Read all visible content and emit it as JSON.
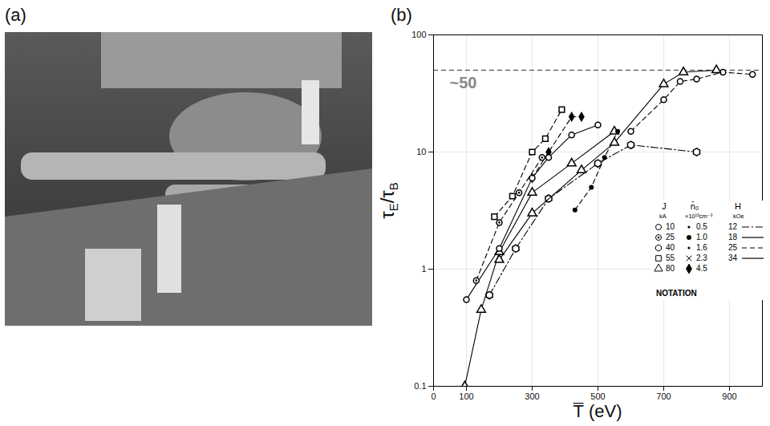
{
  "photo": {
    "label": "(a)"
  },
  "chart_data": {
    "panel_label": "(b)",
    "type": "line",
    "x_label": "T̅ (eV)",
    "y_label": "τE/τB",
    "xlim": [
      0,
      1000
    ],
    "ylim": [
      0.1,
      100
    ],
    "xticks": [
      0,
      100,
      300,
      500,
      700,
      900
    ],
    "yticks": [
      0.1,
      1,
      10,
      100
    ],
    "log": "y",
    "grid": true,
    "legend": "bottom-right",
    "annotations": [
      {
        "text": "~50",
        "y": 50,
        "line_style": "dashed"
      }
    ],
    "series": [
      {
        "marker": "triangle",
        "line_style": "solid",
        "x": [
          95,
          145,
          200,
          300,
          420,
          550
        ],
        "values": [
          0.1,
          0.45,
          1.4,
          4.5,
          8,
          15
        ]
      },
      {
        "marker": "square",
        "line_style": "dashed",
        "x": [
          185,
          240,
          300,
          340,
          390
        ],
        "values": [
          2.8,
          4.2,
          10,
          13,
          23
        ]
      },
      {
        "marker": "diamond-filled",
        "line_style": "dashed",
        "x": [
          300,
          350,
          420,
          450
        ],
        "values": [
          6,
          10,
          20,
          20
        ]
      },
      {
        "marker": "circle",
        "line_style": "solid",
        "x": [
          100,
          200,
          300,
          350,
          420,
          500
        ],
        "values": [
          0.55,
          1.5,
          6,
          9,
          14,
          17
        ]
      },
      {
        "marker": "circle-dot",
        "line_style": "dashed",
        "x": [
          130,
          200,
          260,
          330
        ],
        "values": [
          0.8,
          2.5,
          4.5,
          9
        ]
      },
      {
        "marker": "hexagon",
        "line_style": "dashdot",
        "x": [
          170,
          250,
          350,
          500,
          600,
          800
        ],
        "values": [
          0.6,
          1.5,
          4,
          8,
          11.5,
          10
        ]
      },
      {
        "marker": "circle",
        "line_style": "dashed",
        "x": [
          600,
          700,
          750,
          800,
          880,
          970
        ],
        "values": [
          15,
          28,
          40,
          42,
          48,
          46
        ]
      },
      {
        "marker": "filled-circle",
        "line_style": "dashed",
        "x": [
          430,
          480,
          520,
          560
        ],
        "values": [
          3.2,
          5,
          9,
          15
        ]
      },
      {
        "marker": "triangle",
        "line_style": "solid",
        "x": [
          200,
          300,
          450,
          550,
          700,
          760,
          860
        ],
        "values": [
          1.2,
          3,
          7,
          12,
          38,
          48,
          50
        ]
      }
    ],
    "notation": {
      "title": "NOTATION",
      "columns": [
        {
          "head": "J",
          "unit": "kA",
          "entries": [
            {
              "label": "10",
              "marker": "circle"
            },
            {
              "label": "25",
              "marker": "circle-dot"
            },
            {
              "label": "40",
              "marker": "hexagon"
            },
            {
              "label": "55",
              "marker": "square"
            },
            {
              "label": "80",
              "marker": "triangle"
            }
          ]
        },
        {
          "head": "n̄₀",
          "unit": "×10¹³cm⁻³",
          "entries": [
            {
              "label": "0.5",
              "marker": "dot"
            },
            {
              "label": "1.0",
              "marker": "filled-circle"
            },
            {
              "label": "1.6",
              "marker": "dot"
            },
            {
              "label": "2.3",
              "marker": "cross"
            },
            {
              "label": "4.5",
              "marker": "diamond-filled"
            }
          ]
        },
        {
          "head": "H",
          "unit": "kOe",
          "entries": [
            {
              "label": "12",
              "line_style": "dashdot"
            },
            {
              "label": "18",
              "line_style": "solid"
            },
            {
              "label": "25",
              "line_style": "dashed"
            },
            {
              "label": "34",
              "line_style": "solid"
            }
          ]
        }
      ]
    }
  }
}
